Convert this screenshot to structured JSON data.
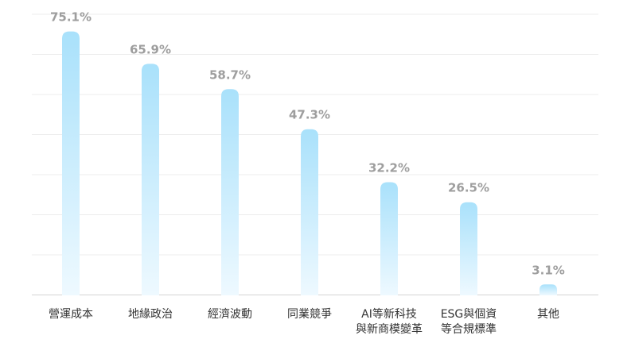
{
  "chart_data": {
    "type": "bar",
    "categories": [
      [
        "營運成本"
      ],
      [
        "地緣政治"
      ],
      [
        "經濟波動"
      ],
      [
        "同業競爭"
      ],
      [
        "AI等新科技",
        "與新商模變革"
      ],
      [
        "ESG與個資",
        "等合規標準"
      ],
      [
        "其他"
      ]
    ],
    "values": [
      75.1,
      65.9,
      58.7,
      47.3,
      32.2,
      26.5,
      3.1
    ],
    "value_labels": [
      "75.1%",
      "65.9%",
      "58.7%",
      "47.3%",
      "32.2%",
      "26.5%",
      "3.1%"
    ],
    "ylim": [
      0,
      80
    ],
    "grid": true,
    "legend": "none",
    "colors": {
      "bar_top": "#a9e1fb",
      "bar_bottom": "#eef9ff",
      "label": "#9e9e9e"
    }
  }
}
